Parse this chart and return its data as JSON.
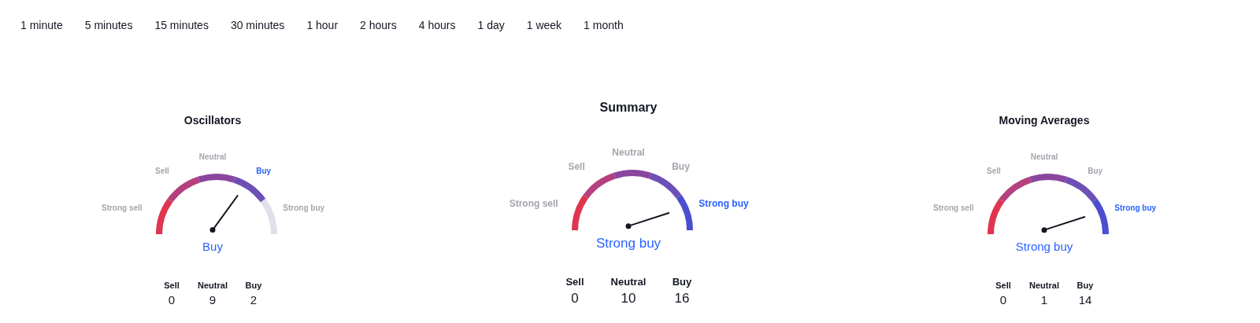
{
  "chart_data": [
    {
      "type": "other",
      "annotations": [
        "1 minute",
        "5 minutes",
        "15 minutes",
        "30 minutes",
        "1 hour",
        "2 hours",
        "4 hours",
        "1 day",
        "1 week",
        "1 month"
      ]
    },
    {
      "type": "donut",
      "title": "Oscillators",
      "categories": [
        "Strong sell",
        "Sell",
        "Neutral",
        "Buy",
        "Strong buy"
      ],
      "values": [
        20,
        20,
        20,
        20,
        20
      ],
      "colors": [
        "#e0354f",
        "#b4407f",
        "#8a469f",
        "#6e4fb6",
        "#dfe1ea"
      ],
      "needle": "Buy",
      "annotations": [
        "Buy"
      ]
    },
    {
      "type": "other",
      "categories": [
        "Sell",
        "Neutral",
        "Buy"
      ],
      "annotations": [
        "0",
        "9",
        "2"
      ]
    },
    {
      "type": "donut",
      "title": "Summary",
      "categories": [
        "Strong sell",
        "Sell",
        "Neutral",
        "Buy",
        "Strong buy"
      ],
      "values": [
        20,
        20,
        20,
        20,
        20
      ],
      "colors": [
        "#e0354f",
        "#b4407f",
        "#8a469f",
        "#6e4fb6",
        "#4c4ed0"
      ],
      "needle": "Strong buy",
      "annotations": [
        "Strong buy"
      ]
    },
    {
      "type": "other",
      "categories": [
        "Sell",
        "Neutral",
        "Buy"
      ],
      "annotations": [
        "0",
        "10",
        "16"
      ]
    },
    {
      "type": "donut",
      "title": "Moving Averages",
      "categories": [
        "Strong sell",
        "Sell",
        "Neutral",
        "Buy",
        "Strong buy"
      ],
      "values": [
        20,
        20,
        20,
        20,
        20
      ],
      "colors": [
        "#e0354f",
        "#b4407f",
        "#8a469f",
        "#6e4fb6",
        "#4c4ed0"
      ],
      "needle": "Strong buy",
      "annotations": [
        "Strong buy"
      ]
    },
    {
      "type": "other",
      "categories": [
        "Sell",
        "Neutral",
        "Buy"
      ],
      "annotations": [
        "0",
        "1",
        "14"
      ]
    }
  ]
}
